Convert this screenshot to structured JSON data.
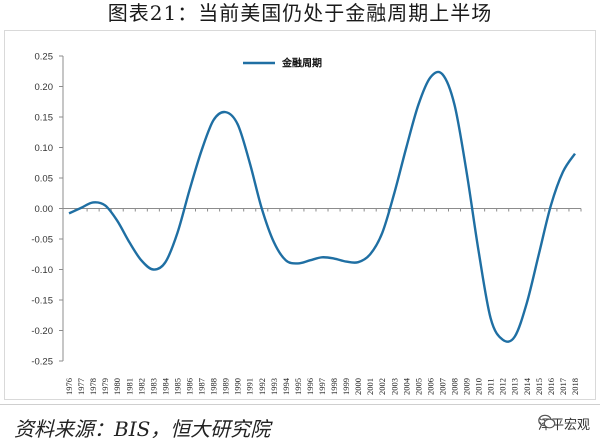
{
  "title": "图表21：当前美国仍处于金融周期上半场",
  "source": "资料来源：BIS，恒大研究院",
  "watermark": "泽平宏观",
  "colors": {
    "line": "#1f6fa3",
    "axis": "#8c8c8c",
    "text": "#333333"
  },
  "chart_data": {
    "type": "line",
    "title": "",
    "xlabel": "",
    "ylabel": "",
    "ylim": [
      -0.25,
      0.25
    ],
    "yticks": [
      "0.25",
      "0.20",
      "0.15",
      "0.10",
      "0.05",
      "0.00",
      "-0.05",
      "-0.10",
      "-0.15",
      "-0.20",
      "-0.25"
    ],
    "ytick_values": [
      0.25,
      0.2,
      0.15,
      0.1,
      0.05,
      0.0,
      -0.05,
      -0.1,
      -0.15,
      -0.2,
      -0.25
    ],
    "categories": [
      "1976",
      "1977",
      "1978",
      "1979",
      "1980",
      "1981",
      "1982",
      "1983",
      "1984",
      "1985",
      "1986",
      "1987",
      "1988",
      "1989",
      "1990",
      "1991",
      "1992",
      "1993",
      "1994",
      "1995",
      "1996",
      "1997",
      "1998",
      "1999",
      "2000",
      "2001",
      "2002",
      "2003",
      "2004",
      "2005",
      "2006",
      "2007",
      "2008",
      "2009",
      "2010",
      "2011",
      "2012",
      "2013",
      "2014",
      "2015",
      "2016",
      "2017",
      "2018"
    ],
    "grid": false,
    "legend_position": "top-left",
    "series": [
      {
        "name": "金融周期",
        "values": [
          -0.008,
          0.001,
          0.01,
          0.005,
          -0.02,
          -0.055,
          -0.085,
          -0.1,
          -0.088,
          -0.04,
          0.03,
          0.095,
          0.145,
          0.158,
          0.138,
          0.075,
          0.0,
          -0.055,
          -0.085,
          -0.09,
          -0.085,
          -0.08,
          -0.082,
          -0.087,
          -0.088,
          -0.075,
          -0.04,
          0.025,
          0.1,
          0.17,
          0.215,
          0.22,
          0.17,
          0.06,
          -0.07,
          -0.18,
          -0.215,
          -0.21,
          -0.155,
          -0.075,
          0.005,
          0.06,
          0.09
        ]
      }
    ]
  }
}
